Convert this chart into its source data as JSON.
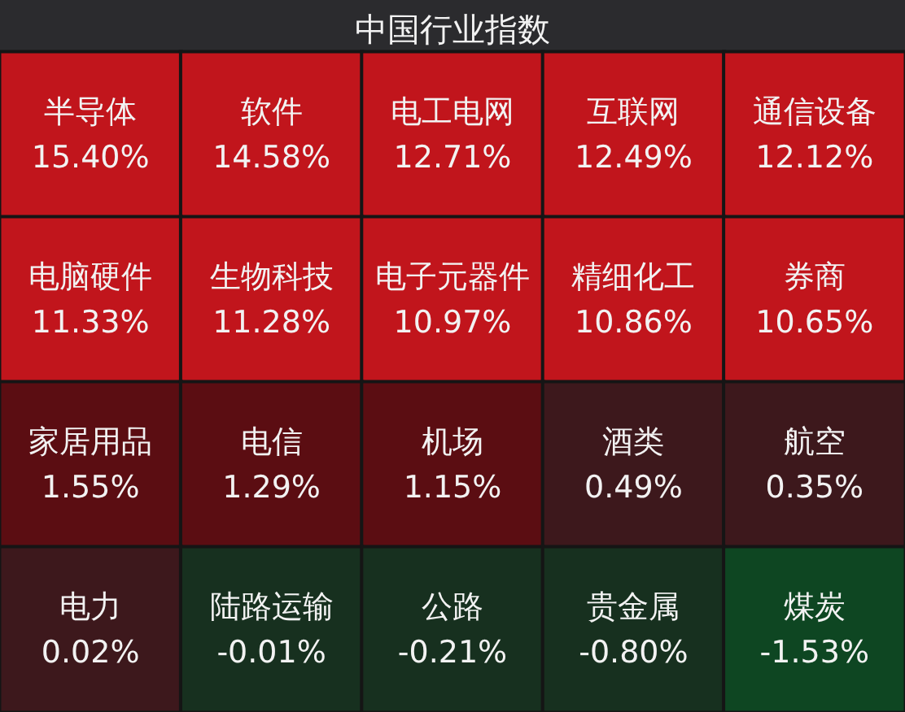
{
  "chart_data": {
    "type": "other",
    "title": "中国行业指数",
    "categories": [
      "半导体",
      "软件",
      "电工电网",
      "互联网",
      "通信设备",
      "电脑硬件",
      "生物科技",
      "电子元器件",
      "精细化工",
      "券商",
      "家居用品",
      "电信",
      "机场",
      "酒类",
      "航空",
      "电力",
      "陆路运输",
      "公路",
      "贵金属",
      "煤炭"
    ],
    "values": [
      15.4,
      14.58,
      12.71,
      12.49,
      12.12,
      11.33,
      11.28,
      10.97,
      10.86,
      10.65,
      1.55,
      1.29,
      1.15,
      0.49,
      0.35,
      0.02,
      -0.01,
      -0.21,
      -0.8,
      -1.53
    ],
    "value_labels": [
      "15.40%",
      "14.58%",
      "12.71%",
      "12.49%",
      "12.12%",
      "11.33%",
      "11.28%",
      "10.97%",
      "10.86%",
      "10.65%",
      "1.55%",
      "1.29%",
      "1.15%",
      "0.49%",
      "0.35%",
      "0.02%",
      "-0.01%",
      "-0.21%",
      "-0.80%",
      "-1.53%"
    ],
    "colors": [
      "#c1151c",
      "#c1151c",
      "#c1151c",
      "#c1151c",
      "#c1151c",
      "#c1151c",
      "#c1151c",
      "#c1151c",
      "#c1151c",
      "#c1151c",
      "#5b0d12",
      "#5b0d12",
      "#5b0d12",
      "#3d181c",
      "#3d181c",
      "#3d181c",
      "#17301f",
      "#17301f",
      "#17301f",
      "#0e4622"
    ]
  }
}
